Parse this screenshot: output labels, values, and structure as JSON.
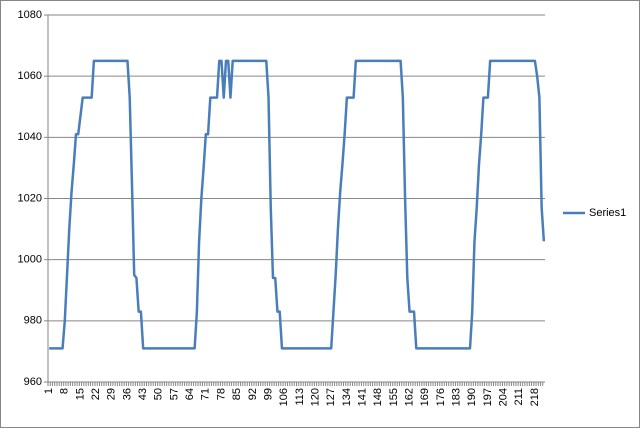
{
  "chart_data": {
    "type": "line",
    "categories": [
      1,
      null,
      null,
      null,
      null,
      null,
      null,
      8,
      null,
      null,
      null,
      null,
      null,
      null,
      15,
      null,
      null,
      null,
      null,
      null,
      null,
      22,
      null,
      null,
      null,
      null,
      null,
      null,
      29,
      null,
      null,
      null,
      null,
      null,
      null,
      36,
      null,
      null,
      null,
      null,
      null,
      null,
      43,
      null,
      null,
      null,
      null,
      null,
      null,
      50,
      null,
      null,
      null,
      null,
      null,
      null,
      57,
      null,
      null,
      null,
      null,
      null,
      null,
      64,
      null,
      null,
      null,
      null,
      null,
      null,
      71,
      null,
      null,
      null,
      null,
      null,
      null,
      78,
      null,
      null,
      null,
      null,
      null,
      null,
      85,
      null,
      null,
      null,
      null,
      null,
      null,
      92,
      null,
      null,
      null,
      null,
      null,
      null,
      99,
      null,
      null,
      null,
      null,
      null,
      null,
      106,
      null,
      null,
      null,
      null,
      null,
      null,
      113,
      null,
      null,
      null,
      null,
      null,
      null,
      120,
      null,
      null,
      null,
      null,
      null,
      null,
      127,
      null,
      null,
      null,
      null,
      null,
      null,
      134,
      null,
      null,
      null,
      null,
      null,
      null,
      141,
      null,
      null,
      null,
      null,
      null,
      null,
      148,
      null,
      null,
      null,
      null,
      null,
      null,
      155,
      null,
      null,
      null,
      null,
      null,
      null,
      162,
      null,
      null,
      null,
      null,
      null,
      null,
      169,
      null,
      null,
      null,
      null,
      null,
      null,
      176,
      null,
      null,
      null,
      null,
      null,
      null,
      183,
      null,
      null,
      null,
      null,
      null,
      null,
      190,
      null,
      null,
      null,
      null,
      null,
      null,
      197,
      null,
      null,
      null,
      null,
      null,
      null,
      204,
      null,
      null,
      null,
      null,
      null,
      null,
      211,
      null,
      null,
      null,
      null,
      null,
      null,
      218,
      null,
      null,
      null,
      null
    ],
    "series": [
      {
        "name": "Series1",
        "color": "#4a7ebb",
        "values": [
          971,
          971,
          971,
          971,
          971,
          971,
          971,
          980,
          995,
          1010,
          1022,
          1031,
          1041,
          1041,
          1047,
          1053,
          1053,
          1053,
          1053,
          1053,
          1065,
          1065,
          1065,
          1065,
          1065,
          1065,
          1065,
          1065,
          1065,
          1065,
          1065,
          1065,
          1065,
          1065,
          1065,
          1065,
          1053,
          1025,
          995,
          994,
          983,
          983,
          971,
          971,
          971,
          971,
          971,
          971,
          971,
          971,
          971,
          971,
          971,
          971,
          971,
          971,
          971,
          971,
          971,
          971,
          971,
          971,
          971,
          971,
          971,
          971,
          983,
          1006,
          1020,
          1030,
          1041,
          1041,
          1053,
          1053,
          1053,
          1053,
          1065,
          1065,
          1053,
          1065,
          1065,
          1053,
          1065,
          1065,
          1065,
          1065,
          1065,
          1065,
          1065,
          1065,
          1065,
          1065,
          1065,
          1065,
          1065,
          1065,
          1065,
          1065,
          1053,
          1017,
          994,
          994,
          983,
          983,
          971,
          971,
          971,
          971,
          971,
          971,
          971,
          971,
          971,
          971,
          971,
          971,
          971,
          971,
          971,
          971,
          971,
          971,
          971,
          971,
          971,
          971,
          971,
          983,
          995,
          1010,
          1022,
          1031,
          1041,
          1053,
          1053,
          1053,
          1053,
          1065,
          1065,
          1065,
          1065,
          1065,
          1065,
          1065,
          1065,
          1065,
          1065,
          1065,
          1065,
          1065,
          1065,
          1065,
          1065,
          1065,
          1065,
          1065,
          1065,
          1065,
          1053,
          1020,
          994,
          983,
          983,
          983,
          971,
          971,
          971,
          971,
          971,
          971,
          971,
          971,
          971,
          971,
          971,
          971,
          971,
          971,
          971,
          971,
          971,
          971,
          971,
          971,
          971,
          971,
          971,
          971,
          971,
          983,
          1006,
          1017,
          1031,
          1041,
          1053,
          1053,
          1053,
          1065,
          1065,
          1065,
          1065,
          1065,
          1065,
          1065,
          1065,
          1065,
          1065,
          1065,
          1065,
          1065,
          1065,
          1065,
          1065,
          1065,
          1065,
          1065,
          1065,
          1065,
          1060,
          1053,
          1017,
          1006
        ]
      }
    ],
    "ylim": [
      960,
      1080
    ],
    "yticks": [
      960,
      980,
      1000,
      1020,
      1040,
      1060,
      1080
    ],
    "grid": true,
    "legend": "right"
  }
}
